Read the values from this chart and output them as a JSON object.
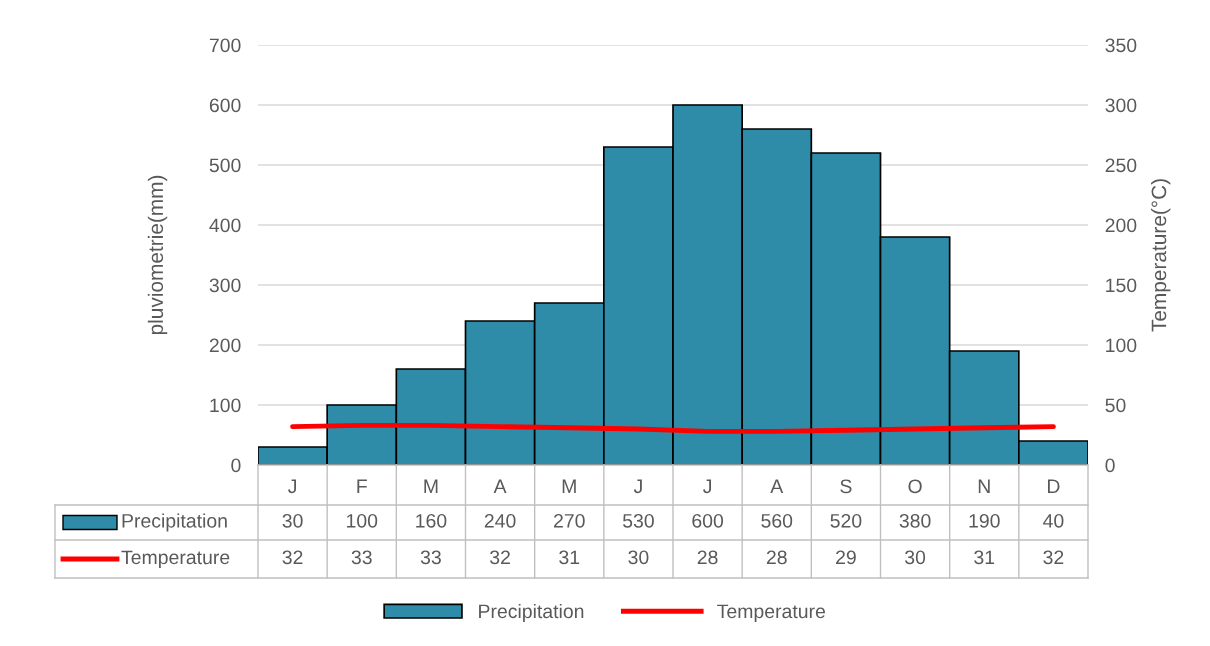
{
  "chart_data": {
    "type": "bar",
    "ylabel": "pluviometrie(mm)",
    "y2label": "Temperature(°C)",
    "categories": [
      "J",
      "F",
      "M",
      "A",
      "M",
      "J",
      "J",
      "A",
      "S",
      "O",
      "N",
      "D"
    ],
    "series": [
      {
        "name": "Precipitation",
        "color": "#2e8ca8",
        "values": [
          30,
          100,
          160,
          240,
          270,
          530,
          600,
          560,
          520,
          380,
          190,
          40
        ]
      },
      {
        "name": "Temperature",
        "type": "line",
        "axis": "y2",
        "color": "#ff0000",
        "values": [
          32,
          33,
          33,
          32,
          31,
          30,
          28,
          28,
          29,
          30,
          31,
          32
        ]
      }
    ],
    "ylim": [
      0,
      700
    ],
    "yticks": [
      0,
      100,
      200,
      300,
      400,
      500,
      600,
      700
    ],
    "y2lim": [
      0,
      350
    ],
    "y2ticks": [
      0,
      50,
      100,
      150,
      200,
      250,
      300,
      350
    ],
    "grid": "y",
    "legend": "bottom",
    "data_labels": true
  }
}
